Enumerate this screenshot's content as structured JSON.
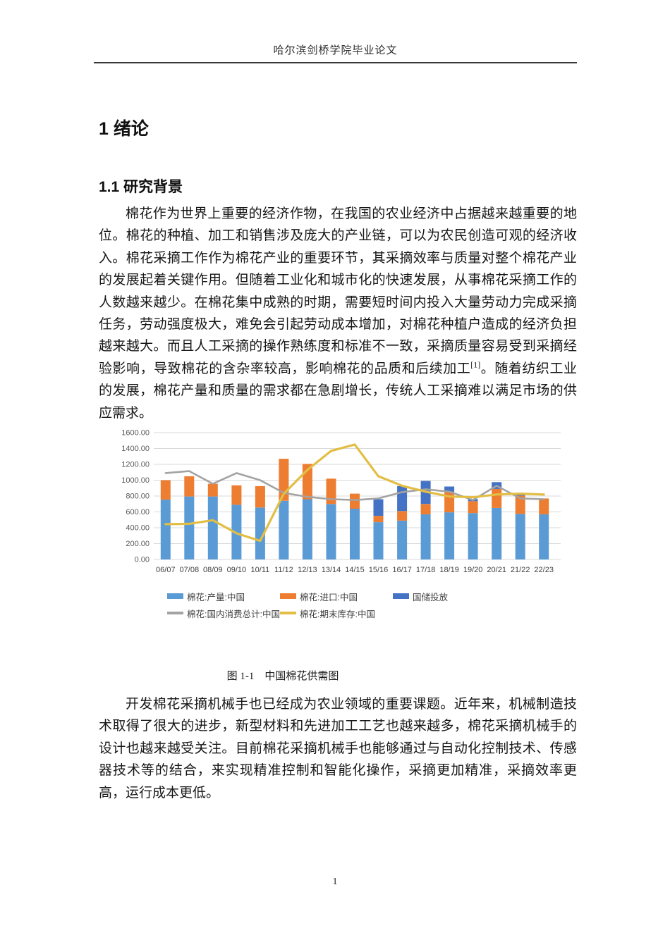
{
  "header": {
    "title": "哈尔滨剑桥学院毕业论文"
  },
  "section": {
    "h1": "1 绪论",
    "h2": "1.1 研究背景"
  },
  "paragraphs": {
    "p1_part1": "棉花作为世界上重要的经济作物，在我国的农业经济中占据越来越重要的地位。棉花的种植、加工和销售涉及庞大的产业链，可以为农民创造可观的经济收入。棉花采摘工作作为棉花产业的重要环节，其采摘效率与质量对整个棉花产业的发展起着关键作用。但随着工业化和城市化的快速发展，从事棉花采摘工作的人数越来越少。在棉花集中成熟的时期，需要短时间内投入大量劳动力完成采摘任务，劳动强度极大，难免会引起劳动成本增加，对棉花种植户造成的经济负担越来越大。而且人工采摘的操作熟练度和标准不一致，采摘质量容易受到采摘经验影响，导致棉花的含杂率较高，影响棉花的品质和后续加工",
    "p1_ref": "[1]",
    "p1_part2": "。随着纺织工业的发展，棉花产量和质量的需求都在急剧增长，传统人工采摘难以满足市场的供应需求。",
    "p2": "开发棉花采摘机械手也已经成为农业领域的重要课题。近年来，机械制造技术取得了很大的进步，新型材料和先进加工工艺也越来越多，棉花采摘机械手的设计也越来越受关注。目前棉花采摘机械手也能够通过与自动化控制技术、传感器技术等的结合，来实现精准控制和智能化操作，采摘更加精准，采摘效率更高，运行成本更低。"
  },
  "figure": {
    "caption": "图 1-1　中国棉花供需图"
  },
  "page": {
    "number": "1"
  },
  "chart_data": {
    "type": "bar",
    "subtype": "stacked-bar-with-lines",
    "title": "",
    "xlabel": "",
    "ylabel": "",
    "categories": [
      "06/07",
      "07/08",
      "08/09",
      "09/10",
      "10/11",
      "11/12",
      "12/13",
      "13/14",
      "14/15",
      "15/16",
      "16/17",
      "17/18",
      "18/19",
      "19/20",
      "20/21",
      "21/22",
      "22/23"
    ],
    "bar_series": [
      {
        "name": "棉花:产量:中国",
        "color": "#5B9BD5",
        "values": [
          755,
          795,
          795,
          690,
          655,
          740,
          760,
          700,
          640,
          470,
          490,
          570,
          595,
          585,
          650,
          575,
          570
        ]
      },
      {
        "name": "棉花:进口:中国",
        "color": "#ED7D31",
        "values": [
          245,
          255,
          160,
          245,
          270,
          530,
          445,
          320,
          190,
          80,
          120,
          130,
          260,
          150,
          240,
          230,
          200
        ]
      },
      {
        "name": "国储投放",
        "color": "#4472C4",
        "values": [
          0,
          0,
          0,
          0,
          0,
          0,
          0,
          0,
          0,
          210,
          315,
          290,
          65,
          25,
          85,
          35,
          0
        ]
      }
    ],
    "line_series": [
      {
        "name": "棉花:国内消费总计:中国",
        "color": "#A3A3A3",
        "values": [
          1090,
          1115,
          955,
          1090,
          1000,
          840,
          790,
          760,
          750,
          770,
          850,
          885,
          855,
          750,
          930,
          770,
          760
        ]
      },
      {
        "name": "棉花:期末库存:中国",
        "color": "#E2BE45",
        "values": [
          445,
          450,
          495,
          330,
          235,
          830,
          1130,
          1370,
          1450,
          1050,
          930,
          855,
          795,
          785,
          820,
          830,
          820
        ]
      }
    ],
    "ylim": [
      0,
      1600
    ],
    "ytick_step": 200,
    "ytick_format": "two-decimals",
    "grid": true,
    "legend_position": "bottom"
  }
}
